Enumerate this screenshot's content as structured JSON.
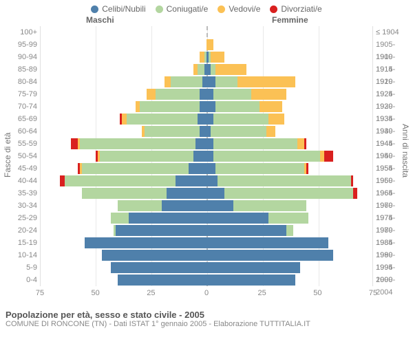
{
  "legend": [
    {
      "label": "Celibi/Nubili",
      "color": "#4f80ab"
    },
    {
      "label": "Coniugati/e",
      "color": "#b3d6a0"
    },
    {
      "label": "Vedovi/e",
      "color": "#fbc155"
    },
    {
      "label": "Divorziati/e",
      "color": "#d9201f"
    }
  ],
  "headers": {
    "male": "Maschi",
    "female": "Femmine"
  },
  "axis_labels": {
    "left": "Fasce di età",
    "right": "Anni di nascita"
  },
  "x_axis": {
    "max": 75,
    "ticks": [
      75,
      50,
      25,
      0,
      25,
      50,
      75
    ]
  },
  "colors": {
    "single": "#4f80ab",
    "married": "#b3d6a0",
    "widowed": "#fbc155",
    "divorced": "#d9201f",
    "grid": "#e8e8e8",
    "center": "#bbbbbb",
    "bg": "#ffffff"
  },
  "title": "Popolazione per età, sesso e stato civile - 2005",
  "subtitle": "COMUNE DI RONCONE (TN) - Dati ISTAT 1° gennaio 2005 - Elaborazione TUTTITALIA.IT",
  "rows": [
    {
      "age": "100+",
      "birth": "≤ 1904",
      "m": {
        "s": 0,
        "c": 0,
        "v": 0,
        "d": 0
      },
      "f": {
        "s": 0,
        "c": 0,
        "v": 0,
        "d": 0
      }
    },
    {
      "age": "95-99",
      "birth": "1905-1909",
      "m": {
        "s": 0,
        "c": 0,
        "v": 0,
        "d": 0
      },
      "f": {
        "s": 0,
        "c": 0,
        "v": 3,
        "d": 0
      }
    },
    {
      "age": "90-94",
      "birth": "1910-1914",
      "m": {
        "s": 0,
        "c": 1,
        "v": 2,
        "d": 0
      },
      "f": {
        "s": 1,
        "c": 1,
        "v": 6,
        "d": 0
      }
    },
    {
      "age": "85-89",
      "birth": "1915-1919",
      "m": {
        "s": 1,
        "c": 3,
        "v": 2,
        "d": 0
      },
      "f": {
        "s": 2,
        "c": 2,
        "v": 14,
        "d": 0
      }
    },
    {
      "age": "80-84",
      "birth": "1920-1924",
      "m": {
        "s": 2,
        "c": 14,
        "v": 3,
        "d": 0
      },
      "f": {
        "s": 4,
        "c": 10,
        "v": 26,
        "d": 0
      }
    },
    {
      "age": "75-79",
      "birth": "1925-1929",
      "m": {
        "s": 3,
        "c": 20,
        "v": 4,
        "d": 0
      },
      "f": {
        "s": 3,
        "c": 17,
        "v": 16,
        "d": 0
      }
    },
    {
      "age": "70-74",
      "birth": "1930-1934",
      "m": {
        "s": 3,
        "c": 27,
        "v": 2,
        "d": 0
      },
      "f": {
        "s": 4,
        "c": 20,
        "v": 10,
        "d": 0
      }
    },
    {
      "age": "65-69",
      "birth": "1935-1939",
      "m": {
        "s": 4,
        "c": 32,
        "v": 2,
        "d": 1
      },
      "f": {
        "s": 3,
        "c": 25,
        "v": 7,
        "d": 0
      }
    },
    {
      "age": "60-64",
      "birth": "1940-1944",
      "m": {
        "s": 3,
        "c": 25,
        "v": 1,
        "d": 0
      },
      "f": {
        "s": 2,
        "c": 25,
        "v": 4,
        "d": 0
      }
    },
    {
      "age": "55-59",
      "birth": "1945-1949",
      "m": {
        "s": 5,
        "c": 52,
        "v": 1,
        "d": 3
      },
      "f": {
        "s": 3,
        "c": 38,
        "v": 3,
        "d": 1
      }
    },
    {
      "age": "50-54",
      "birth": "1950-1954",
      "m": {
        "s": 6,
        "c": 42,
        "v": 1,
        "d": 1
      },
      "f": {
        "s": 3,
        "c": 48,
        "v": 2,
        "d": 4
      }
    },
    {
      "age": "45-49",
      "birth": "1955-1959",
      "m": {
        "s": 8,
        "c": 48,
        "v": 1,
        "d": 1
      },
      "f": {
        "s": 4,
        "c": 40,
        "v": 1,
        "d": 1
      }
    },
    {
      "age": "40-44",
      "birth": "1960-1964",
      "m": {
        "s": 14,
        "c": 50,
        "v": 0,
        "d": 2
      },
      "f": {
        "s": 5,
        "c": 60,
        "v": 0,
        "d": 1
      }
    },
    {
      "age": "35-39",
      "birth": "1965-1969",
      "m": {
        "s": 18,
        "c": 38,
        "v": 0,
        "d": 0
      },
      "f": {
        "s": 8,
        "c": 58,
        "v": 0,
        "d": 2
      }
    },
    {
      "age": "30-34",
      "birth": "1970-1974",
      "m": {
        "s": 20,
        "c": 20,
        "v": 0,
        "d": 0
      },
      "f": {
        "s": 12,
        "c": 33,
        "v": 0,
        "d": 0
      }
    },
    {
      "age": "25-29",
      "birth": "1975-1979",
      "m": {
        "s": 35,
        "c": 8,
        "v": 0,
        "d": 0
      },
      "f": {
        "s": 28,
        "c": 18,
        "v": 0,
        "d": 0
      }
    },
    {
      "age": "20-24",
      "birth": "1980-1984",
      "m": {
        "s": 41,
        "c": 1,
        "v": 0,
        "d": 0
      },
      "f": {
        "s": 36,
        "c": 3,
        "v": 0,
        "d": 0
      }
    },
    {
      "age": "15-19",
      "birth": "1985-1989",
      "m": {
        "s": 55,
        "c": 0,
        "v": 0,
        "d": 0
      },
      "f": {
        "s": 55,
        "c": 0,
        "v": 0,
        "d": 0
      }
    },
    {
      "age": "10-14",
      "birth": "1990-1994",
      "m": {
        "s": 47,
        "c": 0,
        "v": 0,
        "d": 0
      },
      "f": {
        "s": 57,
        "c": 0,
        "v": 0,
        "d": 0
      }
    },
    {
      "age": "5-9",
      "birth": "1995-1999",
      "m": {
        "s": 43,
        "c": 0,
        "v": 0,
        "d": 0
      },
      "f": {
        "s": 42,
        "c": 0,
        "v": 0,
        "d": 0
      }
    },
    {
      "age": "0-4",
      "birth": "2000-2004",
      "m": {
        "s": 40,
        "c": 0,
        "v": 0,
        "d": 0
      },
      "f": {
        "s": 40,
        "c": 0,
        "v": 0,
        "d": 0
      }
    }
  ]
}
